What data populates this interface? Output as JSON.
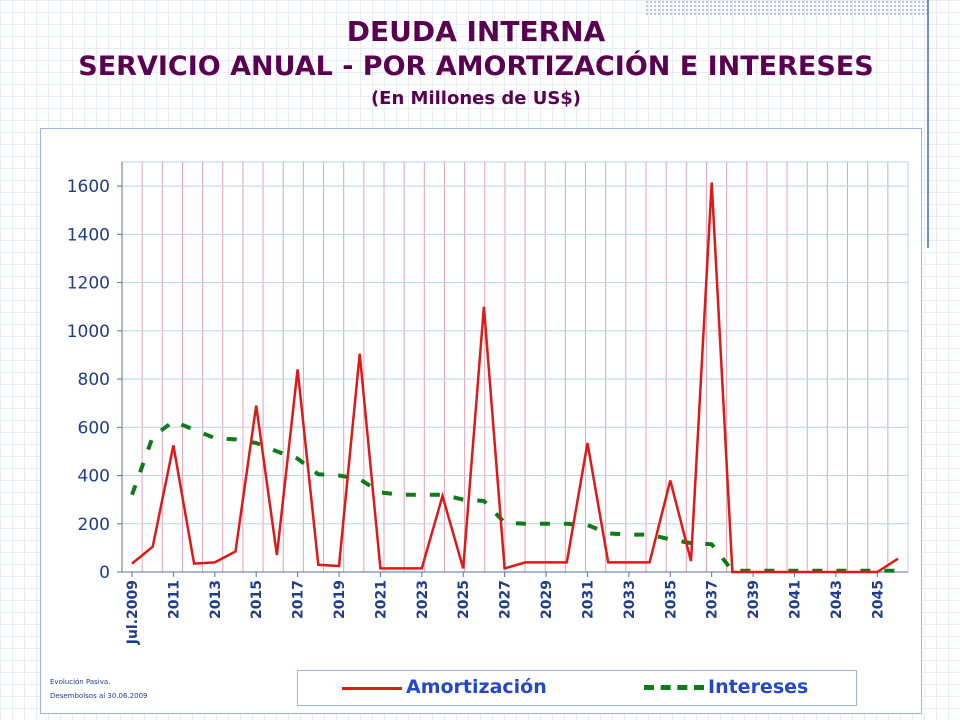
{
  "header": {
    "title": "DEUDA INTERNA",
    "subtitle": "SERVICIO ANUAL - POR AMORTIZACIÓN E INTERESES",
    "units": "(En Millones de US$)"
  },
  "notes": {
    "line1": "Evolución Pasiva.",
    "line2": "Desembolsos al 30.06.2009"
  },
  "colors": {
    "amortizacion": "#e01818",
    "intereses": "#0e7a18",
    "axis_text": "#1f3c8c",
    "title": "#5a0050",
    "vertical_grid": "#e8a0b4",
    "horizontal_grid": "#b5d3ec"
  },
  "chart_data": {
    "type": "line",
    "x": [
      "Jul.2009",
      "2010",
      "2011",
      "2012",
      "2013",
      "2014",
      "2015",
      "2016",
      "2017",
      "2018",
      "2019",
      "2020",
      "2021",
      "2022",
      "2023",
      "2024",
      "2025",
      "2026",
      "2027",
      "2028",
      "2029",
      "2030",
      "2031",
      "2032",
      "2033",
      "2034",
      "2035",
      "2036",
      "2037",
      "2038",
      "2039",
      "2040",
      "2041",
      "2042",
      "2043",
      "2044",
      "2045",
      "2046"
    ],
    "x_tick_labels": [
      "Jul.2009",
      "2011",
      "2013",
      "2015",
      "2017",
      "2019",
      "2021",
      "2023",
      "2025",
      "2027",
      "2029",
      "2031",
      "2033",
      "2035",
      "2037",
      "2039",
      "2041",
      "2043",
      "2045"
    ],
    "y_ticks": [
      "0",
      "200",
      "400",
      "600",
      "800",
      "1000",
      "1200",
      "1400",
      "1600"
    ],
    "ylim": [
      0,
      1700
    ],
    "grid": true,
    "legend_position": "bottom",
    "series": [
      {
        "name": "Amortización",
        "style": "solid",
        "values": [
          35,
          105,
          525,
          35,
          40,
          85,
          690,
          70,
          840,
          30,
          25,
          905,
          15,
          15,
          15,
          315,
          15,
          1100,
          15,
          40,
          40,
          40,
          535,
          40,
          40,
          40,
          380,
          45,
          1615,
          0,
          0,
          0,
          0,
          0,
          0,
          0,
          0,
          55
        ]
      },
      {
        "name": "Intereses",
        "style": "dashed",
        "values": [
          320,
          560,
          625,
          590,
          555,
          550,
          535,
          500,
          470,
          405,
          400,
          385,
          330,
          320,
          320,
          320,
          300,
          295,
          205,
          200,
          200,
          200,
          195,
          160,
          155,
          155,
          135,
          120,
          115,
          5,
          5,
          5,
          5,
          5,
          5,
          5,
          5,
          5
        ]
      }
    ]
  }
}
